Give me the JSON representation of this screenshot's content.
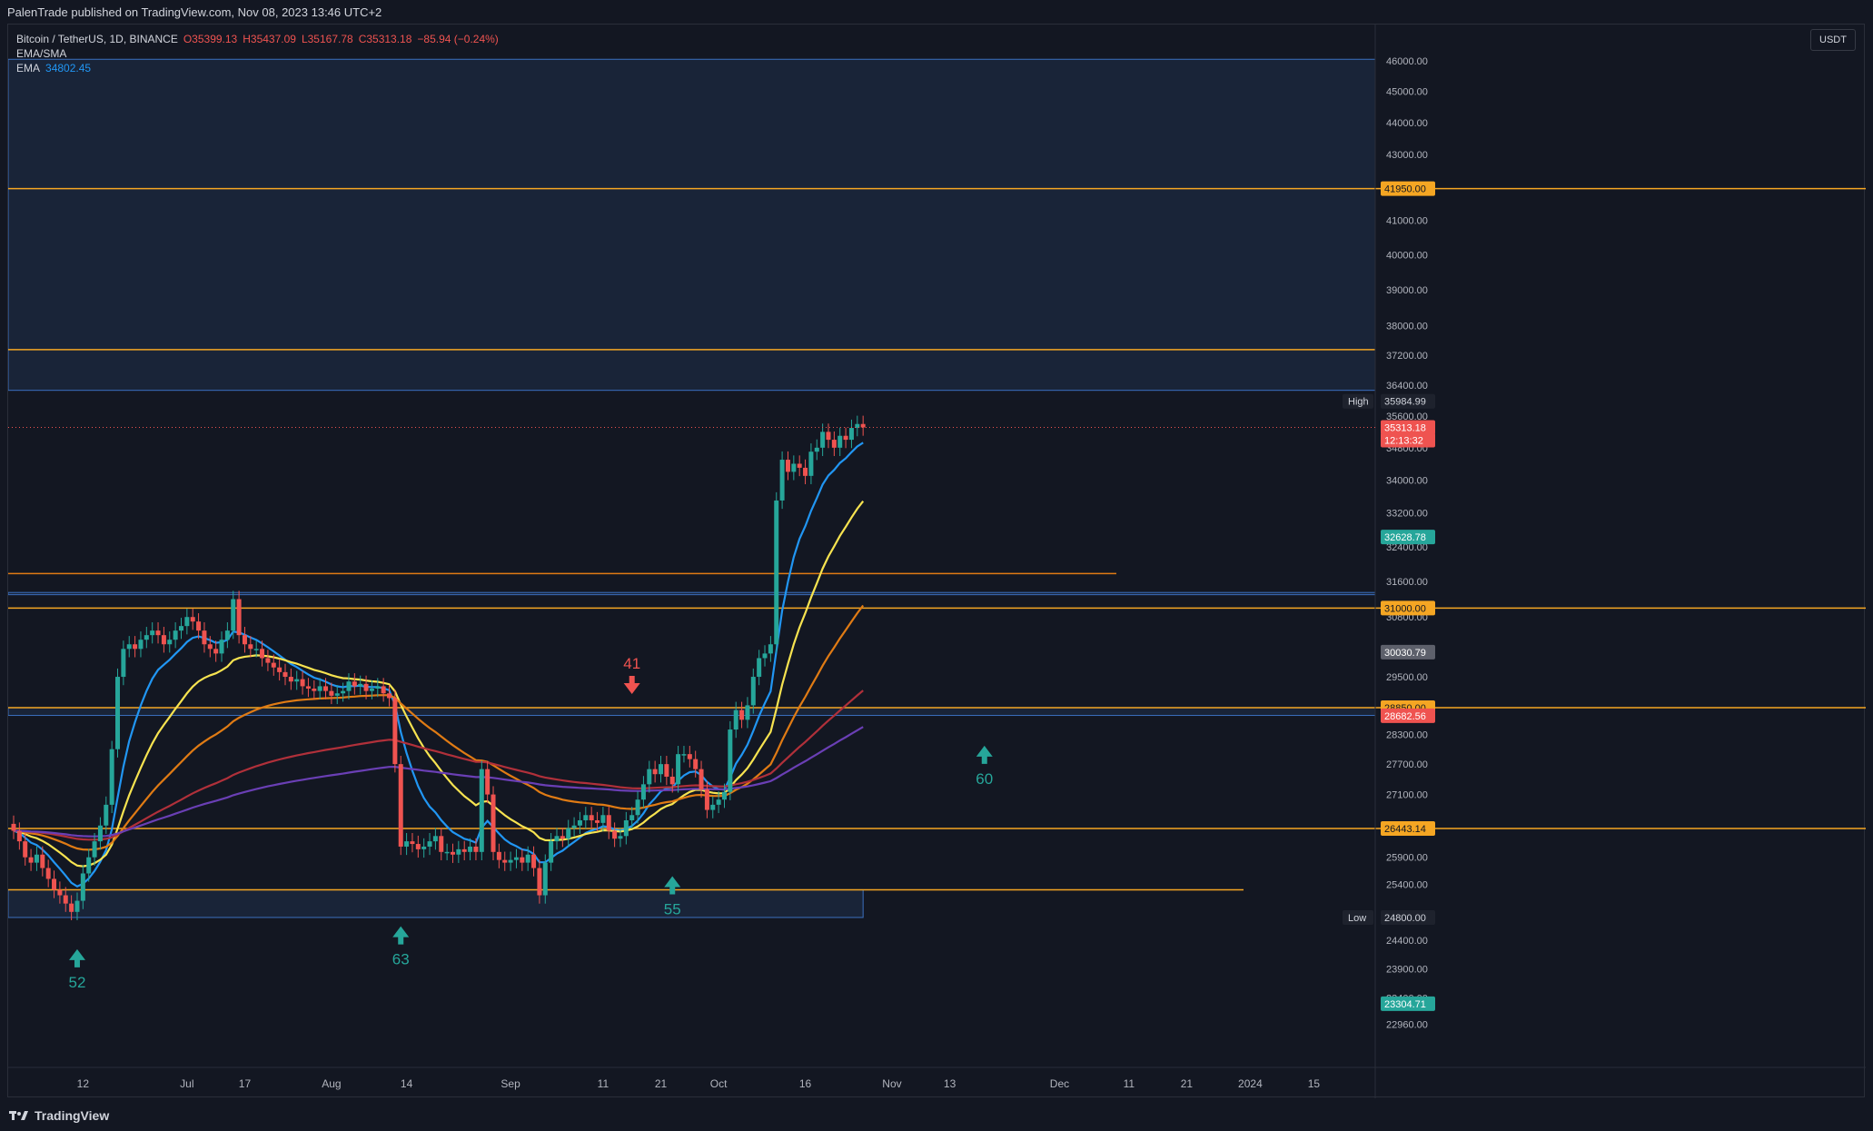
{
  "header": {
    "published": "PalenTrade published on TradingView.com, Nov 08, 2023 13:46 UTC+2"
  },
  "legend": {
    "symbol": "Bitcoin / TetherUS, 1D, BINANCE",
    "open": "O35399.13",
    "high": "H35437.09",
    "low": "L35167.78",
    "close": "C35313.18",
    "change": "−85.94 (−0.24%)",
    "ema_sma_label": "EMA/SMA",
    "ema_label": "EMA",
    "ema_value": "34802.45"
  },
  "currency": "USDT",
  "footer": {
    "brand": "TradingView"
  },
  "colors": {
    "background": "#131722",
    "up": "#26a69a",
    "down": "#ef5350",
    "ema_blue": "#2196f3",
    "ema_yellow": "#f7e350",
    "ema_orange": "#e07b14",
    "sma_red": "#b0303a",
    "sma_purple": "#6a3fb5",
    "level_orange": "#f5a623",
    "zone_blue": "#3b6fbf"
  },
  "chart_data": {
    "type": "candlestick",
    "symbol": "BTCUSDT",
    "timeframe": "1D",
    "y_axis_ticks": [
      46000,
      45000,
      44000,
      43000,
      41000,
      40000,
      39000,
      38000,
      37200,
      36400,
      35600,
      34800,
      34000,
      33200,
      32400,
      31600,
      30800,
      30030,
      29500,
      28300,
      27700,
      27100,
      25900,
      25400,
      24800,
      24400,
      23900,
      23400,
      22960
    ],
    "y_axis_tick_labels": [
      "46000.00",
      "45000.00",
      "44000.00",
      "43000.00",
      "41000.00",
      "40000.00",
      "39000.00",
      "38000.00",
      "37200.00",
      "36400.00",
      "35600.00",
      "34800.00",
      "34000.00",
      "33200.00",
      "32400.00",
      "31600.00",
      "30800.00",
      "30030.00",
      "29500.00",
      "28300.00",
      "27700.00",
      "27100.00",
      "25900.00",
      "25400.00",
      "24800.00",
      "24400.00",
      "23900.00",
      "23400.00",
      "22960.00"
    ],
    "x_axis_labels": [
      "12",
      "Jul",
      "17",
      "Aug",
      "14",
      "Sep",
      "11",
      "21",
      "Oct",
      "16",
      "Nov",
      "13",
      "Dec",
      "11",
      "21",
      "2024",
      "15"
    ],
    "price_markers": [
      {
        "label": "",
        "value": "41950.00",
        "price": 41950,
        "kind": "level"
      },
      {
        "label": "High",
        "value": "35984.99",
        "price": 35984.99,
        "kind": "high"
      },
      {
        "label": "",
        "value": "35313.18",
        "price": 35313.18,
        "kind": "last"
      },
      {
        "label": "",
        "value": "12:13:32",
        "price": 34990,
        "kind": "countdown"
      },
      {
        "label": "",
        "value": "32628.78",
        "price": 32628.78,
        "kind": "ema"
      },
      {
        "label": "",
        "value": "31000.00",
        "price": 31000,
        "kind": "level"
      },
      {
        "label": "",
        "value": "30030.79",
        "price": 30030.79,
        "kind": "gray"
      },
      {
        "label": "",
        "value": "28850.00",
        "price": 28850,
        "kind": "level"
      },
      {
        "label": "",
        "value": "28682.56",
        "price": 28682.56,
        "kind": "sma"
      },
      {
        "label": "",
        "value": "26443.14",
        "price": 26443.14,
        "kind": "level"
      },
      {
        "label": "Low",
        "value": "24800.00",
        "price": 24800,
        "kind": "low"
      },
      {
        "label": "",
        "value": "23304.71",
        "price": 23304.71,
        "kind": "ema2"
      }
    ],
    "annotations": [
      {
        "text": "52",
        "kind": "up-arrow",
        "day": 11,
        "price": 24050
      },
      {
        "text": "63",
        "kind": "up-arrow",
        "day": 67,
        "price": 24450
      },
      {
        "text": "41",
        "kind": "down-arrow",
        "day": 107,
        "price": 29250
      },
      {
        "text": "55",
        "kind": "up-arrow",
        "day": 114,
        "price": 25350
      },
      {
        "text": "60",
        "kind": "up-arrow",
        "day": 168,
        "price": 27850
      }
    ],
    "closes": [
      26400,
      26200,
      25900,
      25800,
      25950,
      25700,
      25500,
      25300,
      25200,
      25050,
      24900,
      25100,
      25600,
      25900,
      26200,
      26500,
      26900,
      28000,
      29500,
      30100,
      30200,
      30100,
      30300,
      30400,
      30500,
      30400,
      30200,
      30300,
      30500,
      30600,
      30800,
      30700,
      30500,
      30200,
      30100,
      30000,
      30300,
      30500,
      31200,
      30400,
      30200,
      30100,
      30100,
      29900,
      29800,
      29700,
      29600,
      29500,
      29400,
      29450,
      29300,
      29250,
      29200,
      29300,
      29200,
      29100,
      29150,
      29200,
      29400,
      29300,
      29350,
      29200,
      29250,
      29300,
      29150,
      29050,
      27700,
      26100,
      26200,
      26150,
      26050,
      26100,
      26200,
      26300,
      26000,
      26000,
      25950,
      26050,
      26000,
      26100,
      26000,
      27600,
      27100,
      26000,
      25850,
      25800,
      25850,
      25900,
      25800,
      25950,
      25700,
      25200,
      25800,
      26200,
      26300,
      26250,
      26450,
      26500,
      26600,
      26700,
      26600,
      26550,
      26700,
      26400,
      26250,
      26300,
      26600,
      26700,
      27000,
      27300,
      27600,
      27500,
      27700,
      27450,
      27300,
      27900,
      27900,
      27800,
      27600,
      27200,
      26800,
      26900,
      27000,
      27150,
      28400,
      28800,
      28600,
      28900,
      29500,
      29900,
      30000,
      30200,
      33500,
      34500,
      34200,
      34400,
      34300,
      34100,
      34700,
      34800,
      35200,
      35000,
      34800,
      35100,
      35000,
      35300,
      35400,
      35313
    ],
    "emas": [
      {
        "name": "EMA",
        "color": "#2196f3",
        "start_day": 0,
        "end_day": 147
      },
      {
        "name": "EMA/SMA",
        "color": "#f7e350",
        "start_day": 0,
        "end_day": 147
      },
      {
        "name": "EMA/SMA",
        "color": "#e07b14",
        "start_day": 0,
        "end_day": 147
      },
      {
        "name": "EMA/SMA",
        "color": "#b0303a",
        "start_day": 0,
        "end_day": 147
      },
      {
        "name": "EMA/SMA",
        "color": "#6a3fb5",
        "start_day": 0,
        "end_day": 147
      }
    ],
    "horizontal_levels": [
      41950,
      37350,
      31780,
      31000,
      28850,
      26443,
      25300
    ],
    "zones": [
      {
        "from": 36270,
        "to": 46050
      },
      {
        "from": 28690,
        "to": 28850
      },
      {
        "from": 31300,
        "to": 31350
      },
      {
        "from": 24800,
        "to": 25300
      }
    ],
    "ylim": [
      22700,
      46300
    ]
  }
}
